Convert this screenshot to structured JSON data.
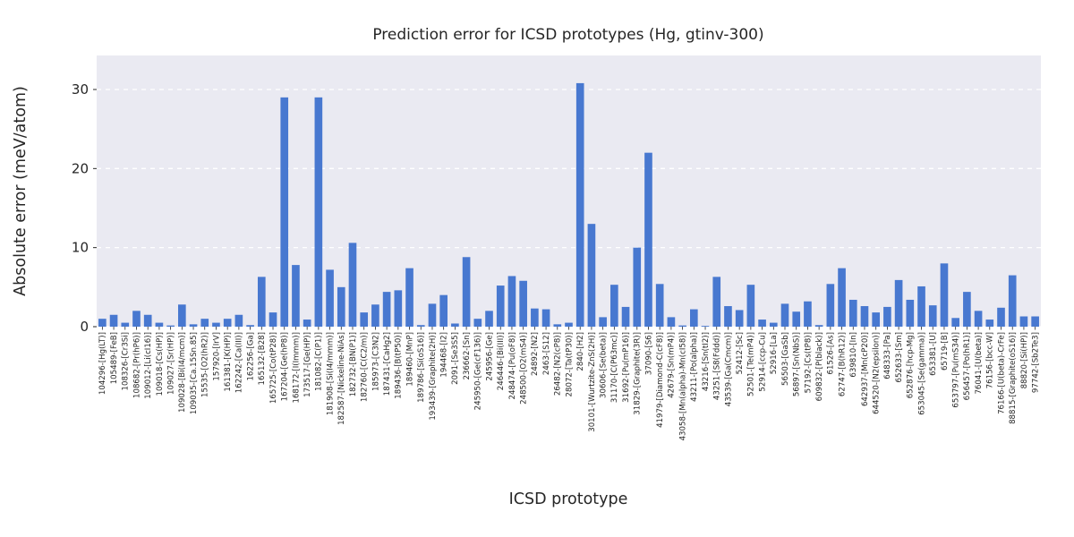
{
  "chart_data": {
    "type": "bar",
    "title": "Prediction error for ICSD prototypes (Hg, gtinv-300)",
    "xlabel": "ICSD prototype",
    "ylabel": "Absolute error (meV/atom)",
    "ylim": [
      0,
      34.3
    ],
    "yticks": [
      0,
      10,
      20,
      30
    ],
    "grid": "horizontal-dashed",
    "legend": "none",
    "colors": {
      "bar": "#4878d0",
      "grid": "#ffffff",
      "plot_bg": "#eaeaf2",
      "text": "#262626"
    },
    "categories": [
      "104296-[Hg(LT)]",
      "105489-[FeB]",
      "108326-[Cr3Si]",
      "108682-[Pr(hP6)]",
      "109012-[Li(cI16)]",
      "109018-[Cs(HP)]",
      "109027-[Sr(HP)]",
      "109028-[Bi(I4/mcm)]",
      "109035-[Ca.15Sn.85]",
      "15535-[O2(hR2)]",
      "157920-[IrV]",
      "161381-[K(HP)]",
      "162242-[Ca(III)]",
      "162256-[Ga]",
      "165132-[B28]",
      "165725-[Co(tP28)]",
      "167204-[Ge(hP8)]",
      "168172-[I(Immm)]",
      "173517-[Ge(HP)]",
      "181082-[C(P1)]",
      "181908-[Si(I4/mmm)]",
      "182587-[Nickeline-NiAs]",
      "182732-[BN(P1)]",
      "182760-[C(C2/m)]",
      "185973-[C3N2]",
      "187431-[CaHg2]",
      "189436-[B(tP50)]",
      "189460-[MnP]",
      "189786-[Si(oS16)]",
      "193439-[Graphite(2H)]",
      "194468-[I2]",
      "2091-[Se3S5]",
      "236662-[Sn]",
      "245950-[Ge(cF136)]",
      "245956-[Ge]",
      "246446-[Bi(III)]",
      "248474-[Pu(oF8)]",
      "248500-[O2(mS4)]",
      "24892-[N2]",
      "2463-[S12]",
      "26482-[N2(cP8)]",
      "28072-[Ta(tP30)]",
      "2840-[H2]",
      "30101-[Wurtzite-ZnS(2H)]",
      "30606-[Se(beta)]",
      "31170-[C(P63mc)]",
      "31692-[Pu(mP16)]",
      "31829-[Graphite(3R)]",
      "37090-[S6]",
      "41979-[Diamond-C(cF8)]",
      "42679-[Sn(mP4)]",
      "43058-[Mn(alpha)-Mn(cI58)]",
      "43211-[Po(alpha)]",
      "43216-[Sn(tI2)]",
      "43251-[S8(Fddd)]",
      "43539-[Ga(Cmcm)]",
      "52412-[Sc]",
      "52501-[Te(mP4)]",
      "52914-[ccp-Cu]",
      "52916-[La]",
      "56503-[GaSb]",
      "56897-[Sn(NbS)]",
      "57192-[Cs(tP8)]",
      "609832-[P(black)]",
      "61526-[As]",
      "62747-[B(hR12)]",
      "639810-[In]",
      "642937-[Mn(cP20)]",
      "644520-[N2(epsilon)]",
      "648333-[Pa]",
      "652633-[Sm]",
      "652876-[hcp-Mg]",
      "653045-[Se(gamma)]",
      "653381-[U]",
      "65719-[B]",
      "653797-[Pu(mS34)]",
      "656457-[Po(hR1)]",
      "76041-[U(beta)]",
      "76156-[bcc-W]",
      "76166-[U(beta)-CrFe]",
      "88815-[Graphite(oS16)]",
      "88820-[Si(HP)]",
      "97742-[Sb2Te3]"
    ],
    "values": [
      1.0,
      1.5,
      0.5,
      2.0,
      1.5,
      0.5,
      0.15,
      2.8,
      0.3,
      1.0,
      0.5,
      1.0,
      1.5,
      0.2,
      6.3,
      1.8,
      29.0,
      7.8,
      0.9,
      29.0,
      7.2,
      5.0,
      10.6,
      1.8,
      2.8,
      4.4,
      4.6,
      7.4,
      0.2,
      2.9,
      4.0,
      0.4,
      8.8,
      1.0,
      2.0,
      5.2,
      6.4,
      5.8,
      2.3,
      2.2,
      0.3,
      0.5,
      30.8,
      13.0,
      1.2,
      5.3,
      2.5,
      10.0,
      22.0,
      5.4,
      1.2,
      0.15,
      2.2,
      0.1,
      6.3,
      2.6,
      2.1,
      5.3,
      0.9,
      0.5,
      2.9,
      1.9,
      3.2,
      0.2,
      5.4,
      7.4,
      3.4,
      2.6,
      1.8,
      2.5,
      5.9,
      3.4,
      5.1,
      2.7,
      8.0,
      1.1,
      4.4,
      2.0,
      0.9,
      2.4,
      6.5,
      1.3,
      1.3
    ]
  }
}
